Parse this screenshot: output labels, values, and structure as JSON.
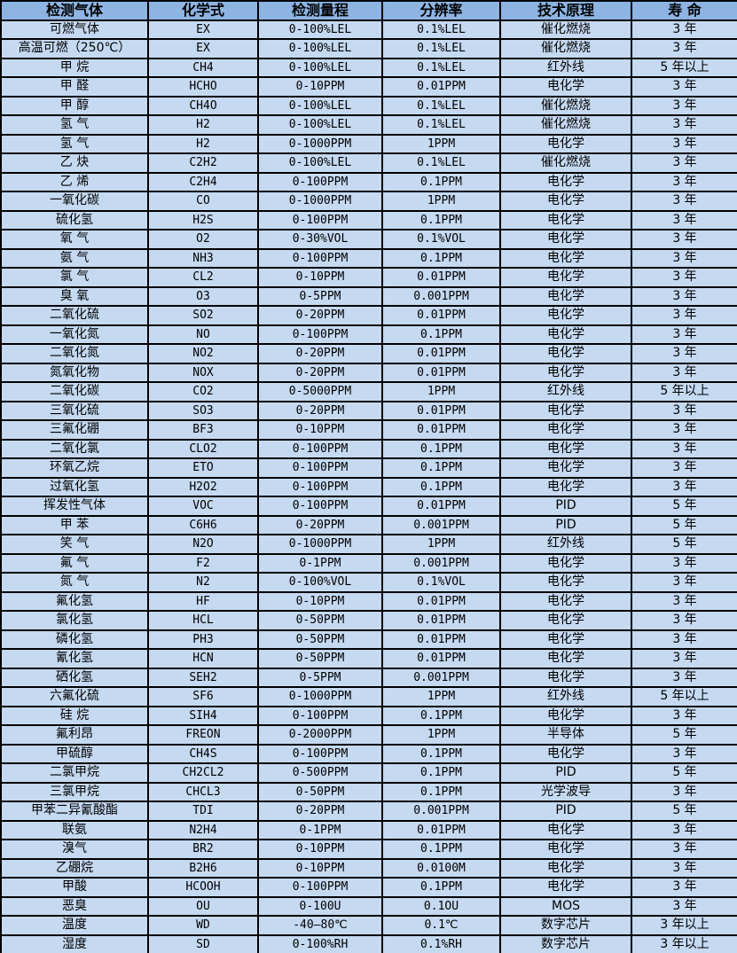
{
  "table": {
    "title": "gas-detection-sensor-spec-table",
    "colors": {
      "header_bg": "#8DB4E2",
      "row_bg": "#C5D9F1",
      "border": "#000000",
      "text": "#000000"
    },
    "headers": [
      "检测气体",
      "化学式",
      "检测量程",
      "分辨率",
      "技术原理",
      "寿 命"
    ],
    "col_keys": [
      "gas",
      "formula",
      "range",
      "resolution",
      "principle",
      "lifespan"
    ],
    "rows": [
      [
        "可燃气体",
        "EX",
        "0-100%LEL",
        "0.1%LEL",
        "催化燃烧",
        "3 年"
      ],
      [
        "高温可燃（250℃）",
        "EX",
        "0-100%LEL",
        "0.1%LEL",
        "催化燃烧",
        "3 年"
      ],
      [
        "甲 烷",
        "CH4",
        "0-100%LEL",
        "0.1%LEL",
        "红外线",
        "5 年以上"
      ],
      [
        "甲 醛",
        "HCHO",
        "0-10PPM",
        "0.01PPM",
        "电化学",
        "3 年"
      ],
      [
        "甲 醇",
        "CH4O",
        "0-100%LEL",
        "0.1%LEL",
        "催化燃烧",
        "3 年"
      ],
      [
        "氢 气",
        "H2",
        "0-100%LEL",
        "0.1%LEL",
        "催化燃烧",
        "3 年"
      ],
      [
        "氢 气",
        "H2",
        "0-1000PPM",
        "1PPM",
        "电化学",
        "3 年"
      ],
      [
        "乙 炔",
        "C2H2",
        "0-100%LEL",
        "0.1%LEL",
        "催化燃烧",
        "3 年"
      ],
      [
        "乙 烯",
        "C2H4",
        "0-100PPM",
        "0.1PPM",
        "电化学",
        "3 年"
      ],
      [
        "一氧化碳",
        "CO",
        "0-1000PPM",
        "1PPM",
        "电化学",
        "3 年"
      ],
      [
        "硫化氢",
        "H2S",
        "0-100PPM",
        "0.1PPM",
        "电化学",
        "3 年"
      ],
      [
        "氧 气",
        "O2",
        "0-30%VOL",
        "0.1%VOL",
        "电化学",
        "3 年"
      ],
      [
        "氨 气",
        "NH3",
        "0-100PPM",
        "0.1PPM",
        "电化学",
        "3 年"
      ],
      [
        "氯 气",
        "CL2",
        "0-10PPM",
        "0.01PPM",
        "电化学",
        "3 年"
      ],
      [
        "臭 氧",
        "O3",
        "0-5PPM",
        "0.001PPM",
        "电化学",
        "3 年"
      ],
      [
        "二氧化硫",
        "SO2",
        "0-20PPM",
        "0.01PPM",
        "电化学",
        "3 年"
      ],
      [
        "一氧化氮",
        "NO",
        "0-100PPM",
        "0.1PPM",
        "电化学",
        "3 年"
      ],
      [
        "二氧化氮",
        "NO2",
        "0-20PPM",
        "0.01PPM",
        "电化学",
        "3 年"
      ],
      [
        "氮氧化物",
        "NOX",
        "0-20PPM",
        "0.01PPM",
        "电化学",
        "3 年"
      ],
      [
        "二氧化碳",
        "CO2",
        "0-5000PPM",
        "1PPM",
        "红外线",
        "5 年以上"
      ],
      [
        "三氧化硫",
        "SO3",
        "0-20PPM",
        "0.01PPM",
        "电化学",
        "3 年"
      ],
      [
        "三氟化硼",
        "BF3",
        "0-10PPM",
        "0.01PPM",
        "电化学",
        "3 年"
      ],
      [
        "二氧化氯",
        "CLO2",
        "0-100PPM",
        "0.1PPM",
        "电化学",
        "3 年"
      ],
      [
        "环氧乙烷",
        "ETO",
        "0-100PPM",
        "0.1PPM",
        "电化学",
        "3 年"
      ],
      [
        "过氧化氢",
        "H2O2",
        "0-100PPM",
        "0.1PPM",
        "电化学",
        "3 年"
      ],
      [
        "挥发性气体",
        "VOC",
        "0-100PPM",
        "0.01PPM",
        "PID",
        "5 年"
      ],
      [
        "甲 苯",
        "C6H6",
        "0-20PPM",
        "0.001PPM",
        "PID",
        "5 年"
      ],
      [
        "笑 气",
        "N2O",
        "0-1000PPM",
        "1PPM",
        "红外线",
        "5 年"
      ],
      [
        "氟 气",
        "F2",
        "0-1PPM",
        "0.001PPM",
        "电化学",
        "3 年"
      ],
      [
        "氮 气",
        "N2",
        "0-100%VOL",
        "0.1%VOL",
        "电化学",
        "3 年"
      ],
      [
        "氟化氢",
        "HF",
        "0-10PPM",
        "0.01PPM",
        "电化学",
        "3 年"
      ],
      [
        "氯化氢",
        "HCL",
        "0-50PPM",
        "0.01PPM",
        "电化学",
        "3 年"
      ],
      [
        "磷化氢",
        "PH3",
        "0-50PPM",
        "0.01PPM",
        "电化学",
        "3 年"
      ],
      [
        "氰化氢",
        "HCN",
        "0-50PPM",
        "0.01PPM",
        "电化学",
        "3 年"
      ],
      [
        "硒化氢",
        "SEH2",
        "0-5PPM",
        "0.001PPM",
        "电化学",
        "3 年"
      ],
      [
        "六氟化硫",
        "SF6",
        "0-1000PPM",
        "1PPM",
        "红外线",
        "5 年以上"
      ],
      [
        "硅 烷",
        "SIH4",
        "0-100PPM",
        "0.1PPM",
        "电化学",
        "3 年"
      ],
      [
        "氟利昂",
        "FREON",
        "0-2000PPM",
        "1PPM",
        "半导体",
        "5 年"
      ],
      [
        "甲硫醇",
        "CH4S",
        "0-100PPM",
        "0.1PPM",
        "电化学",
        "3 年"
      ],
      [
        "二氯甲烷",
        "CH2CL2",
        "0-500PPM",
        "0.1PPM",
        "PID",
        "5 年"
      ],
      [
        "三氯甲烷",
        "CHCL3",
        "0-50PPM",
        "0.1PPM",
        "光学波导",
        "3 年"
      ],
      [
        "甲苯二异氰酸酯",
        "TDI",
        "0-20PPM",
        "0.001PPM",
        "PID",
        "5 年"
      ],
      [
        "联氨",
        "N2H4",
        "0-1PPM",
        "0.01PPM",
        "电化学",
        "3 年"
      ],
      [
        "溴气",
        "BR2",
        "0-10PPM",
        "0.1PPM",
        "电化学",
        "3 年"
      ],
      [
        "乙硼烷",
        "B2H6",
        "0-10PPM",
        "0.0100M",
        "电化学",
        "3 年"
      ],
      [
        "甲酸",
        "HCOOH",
        "0-100PPM",
        "0.1PPM",
        "电化学",
        "3 年"
      ],
      [
        "恶臭",
        "OU",
        "0-100U",
        "0.1OU",
        "MOS",
        "3 年"
      ],
      [
        "温度",
        "WD",
        "-40—80℃",
        "0.1℃",
        "数字芯片",
        "3 年以上"
      ],
      [
        "湿度",
        "SD",
        "0-100%RH",
        "0.1%RH",
        "数字芯片",
        "3 年以上"
      ]
    ]
  }
}
